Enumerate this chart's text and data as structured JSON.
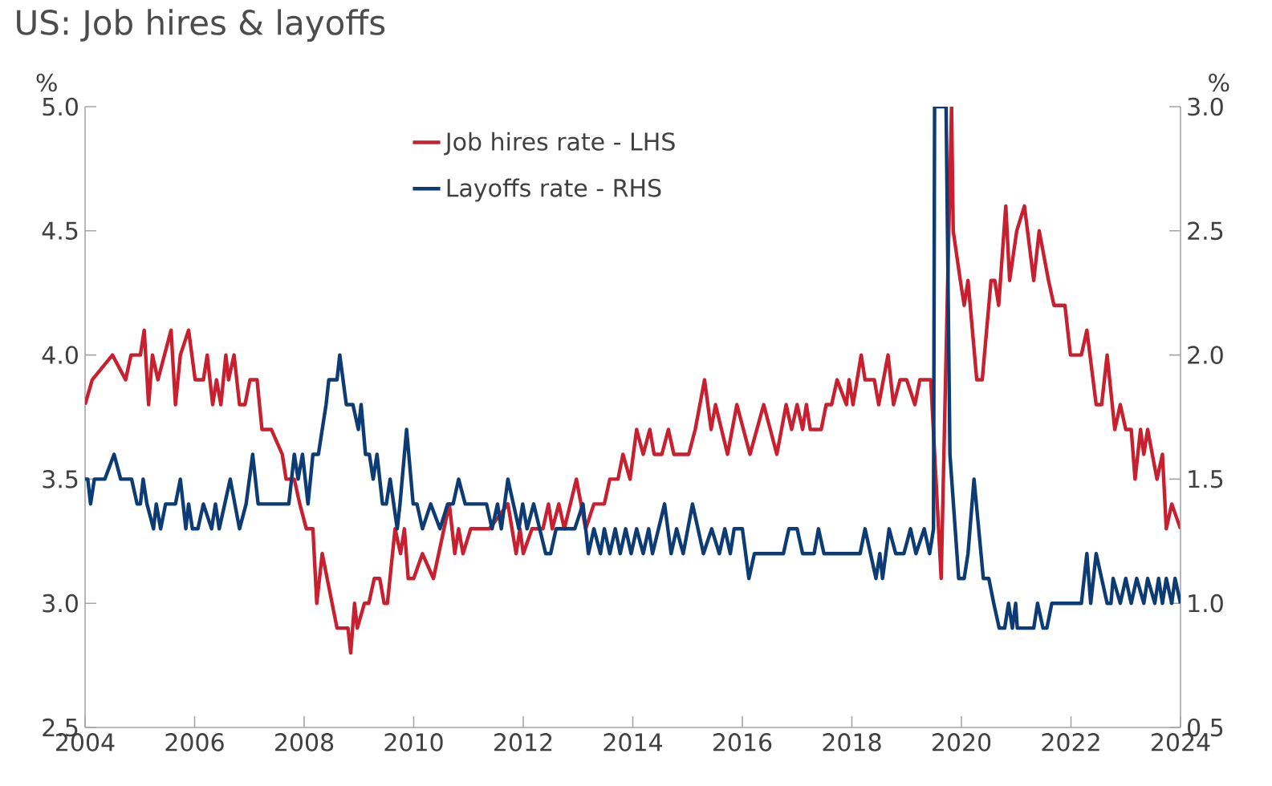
{
  "chart_data": {
    "type": "line",
    "title": "US: Job hires & layoffs",
    "ylabel": "%",
    "y2label": "%",
    "xlim": [
      2004,
      2024
    ],
    "xticks": [
      2004,
      2006,
      2008,
      2010,
      2012,
      2014,
      2016,
      2018,
      2020,
      2022,
      2024
    ],
    "ylim": [
      2.5,
      5.0
    ],
    "yticks": [
      {
        "value": 2.5,
        "label": "2.5"
      },
      {
        "value": 3.0,
        "label": "3.0"
      },
      {
        "value": 3.5,
        "label": "3.5"
      },
      {
        "value": 4.0,
        "label": "4.0"
      },
      {
        "value": 4.5,
        "label": "4.5"
      },
      {
        "value": 5.0,
        "label": "5.0"
      }
    ],
    "y2lim": [
      0.5,
      3.0
    ],
    "y2ticks": [
      {
        "value": 0.5,
        "label": "0.5"
      },
      {
        "value": 1.0,
        "label": "1.0"
      },
      {
        "value": 1.5,
        "label": "1.5"
      },
      {
        "value": 2.0,
        "label": "2.0"
      },
      {
        "value": 2.5,
        "label": "2.5"
      },
      {
        "value": 3.0,
        "label": "3.0"
      }
    ],
    "legend": "top",
    "marker": "none",
    "line_style": "solid",
    "series": [
      {
        "name": "Job hires rate - LHS",
        "color": "#c8202f",
        "x": [
          2004.0,
          2004.13,
          2004.5,
          2004.74,
          2004.84,
          2005.01,
          2005.08,
          2005.16,
          2005.23,
          2005.33,
          2005.57,
          2005.65,
          2005.74,
          2005.89,
          2006.01,
          2006.16,
          2006.23,
          2006.33,
          2006.4,
          2006.48,
          2006.57,
          2006.62,
          2006.72,
          2006.82,
          2006.92,
          2007.01,
          2007.14,
          2007.23,
          2007.4,
          2007.6,
          2007.67,
          2007.82,
          2007.92,
          2008.04,
          2008.16,
          2008.23,
          2008.33,
          2008.6,
          2008.8,
          2008.85,
          2008.92,
          2008.97,
          2009.1,
          2009.18,
          2009.28,
          2009.38,
          2009.46,
          2009.52,
          2009.66,
          2009.76,
          2009.83,
          2009.9,
          2010.0,
          2010.16,
          2010.36,
          2010.65,
          2010.75,
          2010.82,
          2010.9,
          2011.04,
          2011.38,
          2011.72,
          2011.87,
          2011.94,
          2012.0,
          2012.16,
          2012.36,
          2012.46,
          2012.53,
          2012.65,
          2012.75,
          2012.97,
          2013.14,
          2013.29,
          2013.48,
          2013.58,
          2013.73,
          2013.82,
          2013.95,
          2014.07,
          2014.19,
          2014.31,
          2014.39,
          2014.53,
          2014.65,
          2014.75,
          2015.02,
          2015.14,
          2015.31,
          2015.43,
          2015.51,
          2015.73,
          2015.9,
          2016.02,
          2016.14,
          2016.39,
          2016.51,
          2016.63,
          2016.8,
          2016.9,
          2017.0,
          2017.1,
          2017.17,
          2017.24,
          2017.44,
          2017.53,
          2017.63,
          2017.73,
          2017.9,
          2017.95,
          2018.02,
          2018.17,
          2018.24,
          2018.41,
          2018.49,
          2018.66,
          2018.76,
          2018.88,
          2019.0,
          2019.15,
          2019.24,
          2019.44,
          2019.63,
          2019.82,
          2019.85,
          2019.98,
          2020.05,
          2020.12,
          2020.28,
          2020.38,
          2020.54,
          2020.61,
          2020.68,
          2020.81,
          2020.88,
          2021.01,
          2021.15,
          2021.32,
          2021.42,
          2021.59,
          2021.69,
          2021.89,
          2021.99,
          2022.19,
          2022.29,
          2022.46,
          2022.56,
          2022.66,
          2022.8,
          2022.9,
          2023.0,
          2023.1,
          2023.17,
          2023.27,
          2023.33,
          2023.4,
          2023.57,
          2023.67,
          2023.74,
          2023.84,
          2024.0
        ],
        "values": [
          3.8,
          3.9,
          4.0,
          3.9,
          4.0,
          4.0,
          4.1,
          3.8,
          4.0,
          3.9,
          4.1,
          3.8,
          4.0,
          4.1,
          3.9,
          3.9,
          4.0,
          3.8,
          3.9,
          3.8,
          4.0,
          3.9,
          4.0,
          3.8,
          3.8,
          3.9,
          3.9,
          3.7,
          3.7,
          3.6,
          3.5,
          3.5,
          3.4,
          3.3,
          3.3,
          3.0,
          3.2,
          2.9,
          2.9,
          2.8,
          3.0,
          2.9,
          3.0,
          3.0,
          3.1,
          3.1,
          3.0,
          3.0,
          3.3,
          3.2,
          3.3,
          3.1,
          3.1,
          3.2,
          3.1,
          3.4,
          3.2,
          3.3,
          3.2,
          3.3,
          3.3,
          3.4,
          3.2,
          3.3,
          3.2,
          3.3,
          3.3,
          3.4,
          3.3,
          3.4,
          3.3,
          3.5,
          3.3,
          3.4,
          3.4,
          3.5,
          3.5,
          3.6,
          3.5,
          3.7,
          3.6,
          3.7,
          3.6,
          3.6,
          3.7,
          3.6,
          3.6,
          3.7,
          3.9,
          3.7,
          3.8,
          3.6,
          3.8,
          3.7,
          3.6,
          3.8,
          3.7,
          3.6,
          3.8,
          3.7,
          3.8,
          3.7,
          3.8,
          3.7,
          3.7,
          3.8,
          3.8,
          3.9,
          3.8,
          3.9,
          3.8,
          4.0,
          3.9,
          3.9,
          3.8,
          4.0,
          3.8,
          3.9,
          3.9,
          3.8,
          3.9,
          3.9,
          3.1,
          5.0,
          4.5,
          4.3,
          4.2,
          4.3,
          3.9,
          3.9,
          4.3,
          4.3,
          4.2,
          4.6,
          4.3,
          4.5,
          4.6,
          4.3,
          4.5,
          4.3,
          4.2,
          4.2,
          4.0,
          4.0,
          4.1,
          3.8,
          3.8,
          4.0,
          3.7,
          3.8,
          3.7,
          3.7,
          3.5,
          3.7,
          3.6,
          3.7,
          3.5,
          3.6,
          3.3,
          3.4,
          3.3
        ]
      },
      {
        "name": "Layoffs rate - RHS",
        "color": "#0d3b73",
        "axis": "y2",
        "x": [
          2004.0,
          2004.05,
          2004.1,
          2004.17,
          2004.36,
          2004.53,
          2004.65,
          2004.85,
          2004.95,
          2005.01,
          2005.06,
          2005.13,
          2005.25,
          2005.3,
          2005.38,
          2005.47,
          2005.65,
          2005.74,
          2005.84,
          2005.89,
          2005.96,
          2006.06,
          2006.16,
          2006.31,
          2006.38,
          2006.45,
          2006.65,
          2006.82,
          2006.94,
          2007.06,
          2007.16,
          2007.72,
          2007.82,
          2007.89,
          2007.97,
          2008.07,
          2008.16,
          2008.26,
          2008.4,
          2008.45,
          2008.6,
          2008.65,
          2008.77,
          2008.89,
          2008.99,
          2009.04,
          2009.12,
          2009.19,
          2009.26,
          2009.33,
          2009.43,
          2009.5,
          2009.57,
          2009.7,
          2009.75,
          2009.87,
          2009.99,
          2010.06,
          2010.16,
          2010.31,
          2010.48,
          2010.62,
          2010.72,
          2010.82,
          2010.94,
          2011.33,
          2011.43,
          2011.53,
          2011.6,
          2011.72,
          2011.82,
          2011.92,
          2011.99,
          2012.07,
          2012.19,
          2012.41,
          2012.5,
          2012.6,
          2012.94,
          2013.09,
          2013.19,
          2013.29,
          2013.41,
          2013.48,
          2013.58,
          2013.68,
          2013.77,
          2013.87,
          2013.97,
          2014.07,
          2014.19,
          2014.29,
          2014.36,
          2014.58,
          2014.7,
          2014.8,
          2014.92,
          2015.09,
          2015.29,
          2015.44,
          2015.58,
          2015.68,
          2015.78,
          2015.85,
          2016.0,
          2016.12,
          2016.22,
          2016.75,
          2016.85,
          2017.0,
          2017.1,
          2017.31,
          2017.39,
          2017.49,
          2018.15,
          2018.24,
          2018.34,
          2018.44,
          2018.51,
          2018.56,
          2018.68,
          2018.8,
          2018.95,
          2019.07,
          2019.17,
          2019.32,
          2019.42,
          2019.49,
          2019.51,
          2019.72,
          2019.79,
          2019.95,
          2020.05,
          2020.12,
          2020.23,
          2020.4,
          2020.5,
          2020.59,
          2020.69,
          2020.79,
          2020.86,
          2020.93,
          2020.99,
          2021.02,
          2021.32,
          2021.39,
          2021.49,
          2021.56,
          2021.65,
          2022.19,
          2022.29,
          2022.36,
          2022.46,
          2022.56,
          2022.66,
          2022.73,
          2022.77,
          2022.9,
          2023.0,
          2023.1,
          2023.2,
          2023.33,
          2023.4,
          2023.53,
          2023.6,
          2023.67,
          2023.74,
          2023.84,
          2023.9,
          2024.0
        ],
        "values": [
          1.5,
          1.5,
          1.4,
          1.5,
          1.5,
          1.6,
          1.5,
          1.5,
          1.4,
          1.4,
          1.5,
          1.4,
          1.3,
          1.4,
          1.3,
          1.4,
          1.4,
          1.5,
          1.3,
          1.4,
          1.3,
          1.3,
          1.4,
          1.3,
          1.4,
          1.3,
          1.5,
          1.3,
          1.4,
          1.6,
          1.4,
          1.4,
          1.6,
          1.5,
          1.6,
          1.4,
          1.6,
          1.6,
          1.8,
          1.9,
          1.9,
          2.0,
          1.8,
          1.8,
          1.7,
          1.8,
          1.6,
          1.6,
          1.5,
          1.6,
          1.4,
          1.4,
          1.5,
          1.3,
          1.4,
          1.7,
          1.4,
          1.4,
          1.3,
          1.4,
          1.3,
          1.4,
          1.4,
          1.5,
          1.4,
          1.4,
          1.3,
          1.4,
          1.3,
          1.5,
          1.4,
          1.3,
          1.4,
          1.3,
          1.4,
          1.2,
          1.2,
          1.3,
          1.3,
          1.4,
          1.2,
          1.3,
          1.2,
          1.3,
          1.2,
          1.3,
          1.2,
          1.3,
          1.2,
          1.3,
          1.2,
          1.3,
          1.2,
          1.4,
          1.2,
          1.3,
          1.2,
          1.4,
          1.2,
          1.3,
          1.2,
          1.3,
          1.2,
          1.3,
          1.3,
          1.1,
          1.2,
          1.2,
          1.3,
          1.3,
          1.2,
          1.2,
          1.3,
          1.2,
          1.2,
          1.3,
          1.2,
          1.1,
          1.2,
          1.1,
          1.3,
          1.2,
          1.2,
          1.3,
          1.2,
          1.3,
          1.2,
          1.3,
          3.0,
          3.0,
          1.6,
          1.1,
          1.1,
          1.2,
          1.5,
          1.1,
          1.1,
          1.0,
          0.9,
          0.9,
          1.0,
          0.9,
          1.0,
          0.9,
          0.9,
          1.0,
          0.9,
          0.9,
          1.0,
          1.0,
          1.2,
          1.0,
          1.2,
          1.1,
          1.0,
          1.0,
          1.1,
          1.0,
          1.1,
          1.0,
          1.1,
          1.0,
          1.1,
          1.0,
          1.1,
          1.0,
          1.1,
          1.0,
          1.1,
          1.0
        ]
      }
    ]
  }
}
